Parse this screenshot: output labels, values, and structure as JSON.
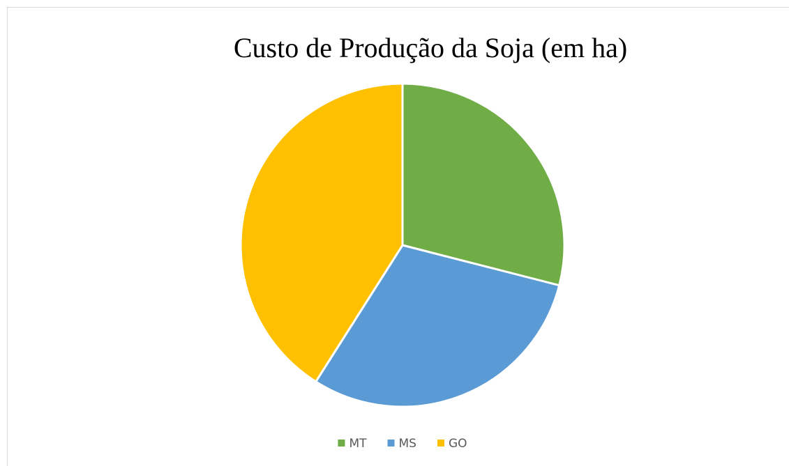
{
  "chart_data": {
    "type": "pie",
    "title": "Custo de Produção da Soja (em ha)",
    "categories": [
      "MT",
      "MS",
      "GO"
    ],
    "values": [
      29,
      30,
      41
    ],
    "colors": [
      "#70ad47",
      "#5b9bd5",
      "#ffc000"
    ],
    "legend": "bottom"
  }
}
